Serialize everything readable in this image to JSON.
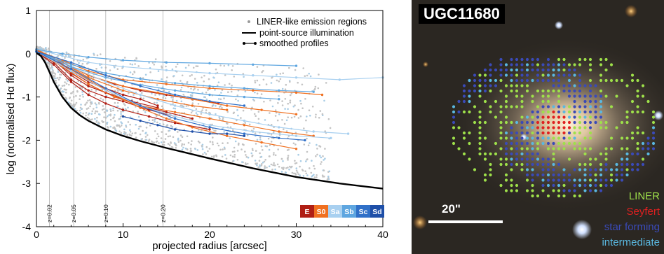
{
  "chart_data": {
    "type": "scatter",
    "xlabel": "projected radius [arcsec]",
    "ylabel": "log (normalised Hα flux)",
    "xlim": [
      0,
      40
    ],
    "ylim": [
      -4,
      1
    ],
    "xticks": [
      0,
      10,
      20,
      30,
      40
    ],
    "yticks": [
      1,
      0,
      -1,
      -2,
      -3,
      -4
    ],
    "legend": {
      "placement": "top-right",
      "entries": [
        "LINER-like emission regions",
        "point-source illumination",
        "smoothed profiles"
      ]
    },
    "redshift_markers": [
      {
        "label": "z=0.02",
        "x": 1.5
      },
      {
        "label": "z=0.05",
        "x": 4.3
      },
      {
        "label": "z=0.10",
        "x": 8.0
      },
      {
        "label": "z=0.20",
        "x": 14.6
      }
    ],
    "morphology_key": {
      "labels": [
        "E",
        "S0",
        "Sa",
        "Sb",
        "Sc",
        "Sd"
      ],
      "colors": [
        "#b01e14",
        "#f07020",
        "#a8d0f0",
        "#5ea6e0",
        "#3070c8",
        "#1e4fa8"
      ]
    },
    "point_source_curve": {
      "x": [
        0,
        0.5,
        1,
        1.5,
        2,
        3,
        4,
        5,
        6,
        8,
        10,
        12,
        15,
        20,
        25,
        30,
        35,
        40
      ],
      "y": [
        0.02,
        -0.05,
        -0.2,
        -0.42,
        -0.65,
        -1.0,
        -1.25,
        -1.42,
        -1.55,
        -1.75,
        -1.9,
        -2.02,
        -2.18,
        -2.42,
        -2.65,
        -2.85,
        -3.0,
        -3.12
      ]
    },
    "smoothed_profiles": [
      {
        "morph": "E",
        "x": [
          0,
          2,
          4,
          6,
          8,
          10,
          12,
          15,
          18
        ],
        "y": [
          0.1,
          -0.15,
          -0.5,
          -0.75,
          -0.9,
          -1.05,
          -1.2,
          -1.35,
          -1.5
        ]
      },
      {
        "morph": "E",
        "x": [
          0,
          2,
          4,
          6,
          8,
          10,
          13,
          16
        ],
        "y": [
          0.05,
          -0.2,
          -0.6,
          -0.85,
          -1.0,
          -1.1,
          -1.3,
          -1.45
        ]
      },
      {
        "morph": "E",
        "x": [
          0,
          2,
          4,
          6,
          8,
          10,
          12,
          14
        ],
        "y": [
          0.08,
          -0.1,
          -0.4,
          -0.65,
          -0.8,
          -0.95,
          -1.05,
          -1.2
        ]
      },
      {
        "morph": "E",
        "x": [
          0,
          2,
          4,
          6,
          8,
          10,
          13,
          16,
          20
        ],
        "y": [
          0.05,
          -0.25,
          -0.65,
          -0.95,
          -1.15,
          -1.3,
          -1.45,
          -1.6,
          -1.75
        ]
      },
      {
        "morph": "E",
        "x": [
          0,
          2,
          4,
          6,
          9,
          12,
          15,
          18,
          21
        ],
        "y": [
          0.1,
          -0.1,
          -0.3,
          -0.5,
          -0.7,
          -0.85,
          -0.95,
          -1.05,
          -1.15
        ]
      },
      {
        "morph": "E",
        "x": [
          0,
          2,
          4,
          6,
          8,
          11,
          14
        ],
        "y": [
          0.06,
          -0.15,
          -0.45,
          -0.7,
          -0.9,
          -1.1,
          -1.25
        ]
      },
      {
        "morph": "S0",
        "x": [
          0,
          3,
          6,
          10,
          14,
          18,
          22,
          26,
          30
        ],
        "y": [
          0.1,
          -0.2,
          -0.5,
          -0.75,
          -0.9,
          -1.05,
          -1.2,
          -1.3,
          -1.4
        ]
      },
      {
        "morph": "S0",
        "x": [
          0,
          3,
          6,
          9,
          12,
          16,
          20,
          24,
          28,
          32
        ],
        "y": [
          0.05,
          -0.3,
          -0.7,
          -1.0,
          -1.2,
          -1.35,
          -1.5,
          -1.65,
          -1.8,
          -1.9
        ]
      },
      {
        "morph": "S0",
        "x": [
          0,
          3,
          6,
          10,
          15,
          20,
          25,
          30,
          33
        ],
        "y": [
          0.08,
          -0.15,
          -0.4,
          -0.6,
          -0.7,
          -0.8,
          -0.85,
          -0.9,
          -0.95
        ]
      },
      {
        "morph": "S0",
        "x": [
          0,
          3,
          6,
          9,
          12,
          15,
          18,
          22,
          26,
          30
        ],
        "y": [
          0.05,
          -0.25,
          -0.6,
          -0.95,
          -1.25,
          -1.5,
          -1.7,
          -1.9,
          -2.05,
          -2.2
        ]
      },
      {
        "morph": "S0",
        "x": [
          0,
          3,
          6,
          10,
          14,
          18,
          22
        ],
        "y": [
          0.1,
          -0.2,
          -0.55,
          -0.85,
          -1.05,
          -1.2,
          -1.3
        ]
      },
      {
        "morph": "Sa",
        "x": [
          0,
          3,
          6,
          10,
          15,
          20,
          25,
          30,
          35,
          40
        ],
        "y": [
          0.1,
          -0.05,
          -0.2,
          -0.3,
          -0.38,
          -0.45,
          -0.5,
          -0.55,
          -0.6,
          -0.55
        ]
      },
      {
        "morph": "Sa",
        "x": [
          0,
          4,
          8,
          12,
          16,
          20,
          24,
          28,
          32,
          36
        ],
        "y": [
          0.05,
          -0.3,
          -0.65,
          -0.95,
          -1.2,
          -1.4,
          -1.55,
          -1.7,
          -1.8,
          -1.85
        ]
      },
      {
        "morph": "Sa",
        "x": [
          0,
          4,
          8,
          12,
          16,
          20,
          25,
          30,
          34
        ],
        "y": [
          0.05,
          -0.4,
          -0.85,
          -1.2,
          -1.45,
          -1.65,
          -1.8,
          -1.9,
          -1.95
        ]
      },
      {
        "morph": "Sb",
        "x": [
          0,
          3,
          6,
          10,
          15,
          20,
          25,
          30
        ],
        "y": [
          0.1,
          0.0,
          -0.08,
          -0.15,
          -0.2,
          -0.22,
          -0.25,
          -0.28
        ]
      },
      {
        "morph": "Sb",
        "x": [
          0,
          4,
          8,
          12,
          16,
          20,
          24,
          28
        ],
        "y": [
          0.05,
          -0.3,
          -0.55,
          -0.72,
          -0.85,
          -0.95,
          -1.0,
          -1.05
        ]
      },
      {
        "morph": "Sb",
        "x": [
          0,
          4,
          8,
          12,
          16,
          20,
          24,
          28,
          32
        ],
        "y": [
          0.05,
          -0.25,
          -0.45,
          -0.58,
          -0.68,
          -0.75,
          -0.8,
          -0.85,
          -0.88
        ]
      },
      {
        "morph": "Sc",
        "x": [
          0,
          4,
          8,
          12,
          16,
          20,
          24,
          28,
          31
        ],
        "y": [
          0.05,
          -0.35,
          -0.8,
          -1.2,
          -1.5,
          -1.7,
          -1.85,
          -1.95,
          -2.0
        ]
      },
      {
        "morph": "Sc",
        "x": [
          0,
          4,
          8,
          12,
          16,
          20,
          24
        ],
        "y": [
          0.05,
          -0.2,
          -0.5,
          -0.75,
          -0.95,
          -1.1,
          -1.2
        ]
      },
      {
        "morph": "Sd",
        "x": [
          10,
          12,
          14,
          16,
          18,
          20,
          22,
          24
        ],
        "y": [
          -1.45,
          -1.55,
          -1.65,
          -1.75,
          -1.8,
          -1.85,
          -1.85,
          -1.9
        ]
      }
    ]
  },
  "galaxy": {
    "name": "UGC11680",
    "scale_label": "20\"",
    "legend": [
      {
        "label": "LINER",
        "color": "#9ee04a"
      },
      {
        "label": "Seyfert",
        "color": "#e02020"
      },
      {
        "label": "star forming",
        "color": "#3a4ab8"
      },
      {
        "label": "intermediate",
        "color": "#5ab8e0"
      }
    ]
  }
}
